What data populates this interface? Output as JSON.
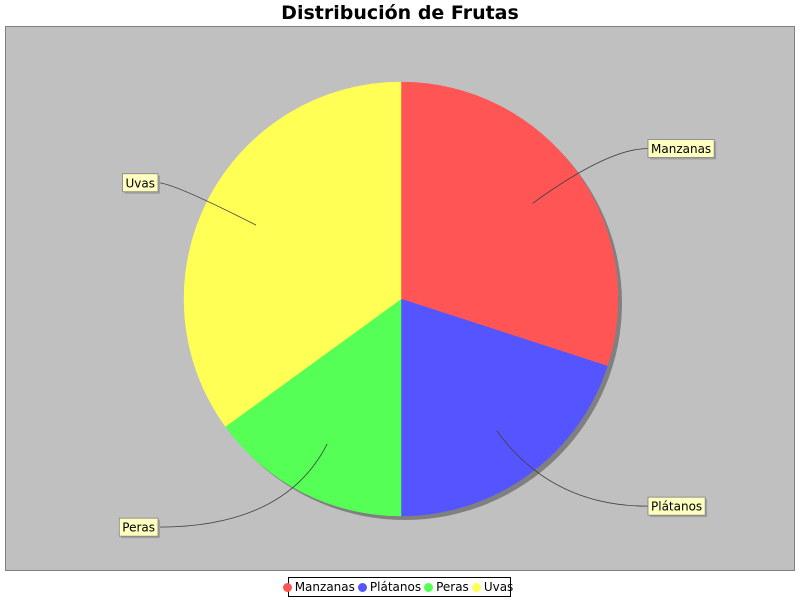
{
  "chart_data": {
    "type": "pie",
    "title": "Distribución de Frutas",
    "slices": [
      {
        "label": "Manzanas",
        "value": 30,
        "color": "#ff5555"
      },
      {
        "label": "Plátanos",
        "value": 20,
        "color": "#5555ff"
      },
      {
        "label": "Peras",
        "value": 15,
        "color": "#55ff55"
      },
      {
        "label": "Uvas",
        "value": 35,
        "color": "#ffff55"
      }
    ],
    "legend_position": "bottom",
    "background": "#c0c0c0",
    "label_box_color": "#ffffc0"
  }
}
